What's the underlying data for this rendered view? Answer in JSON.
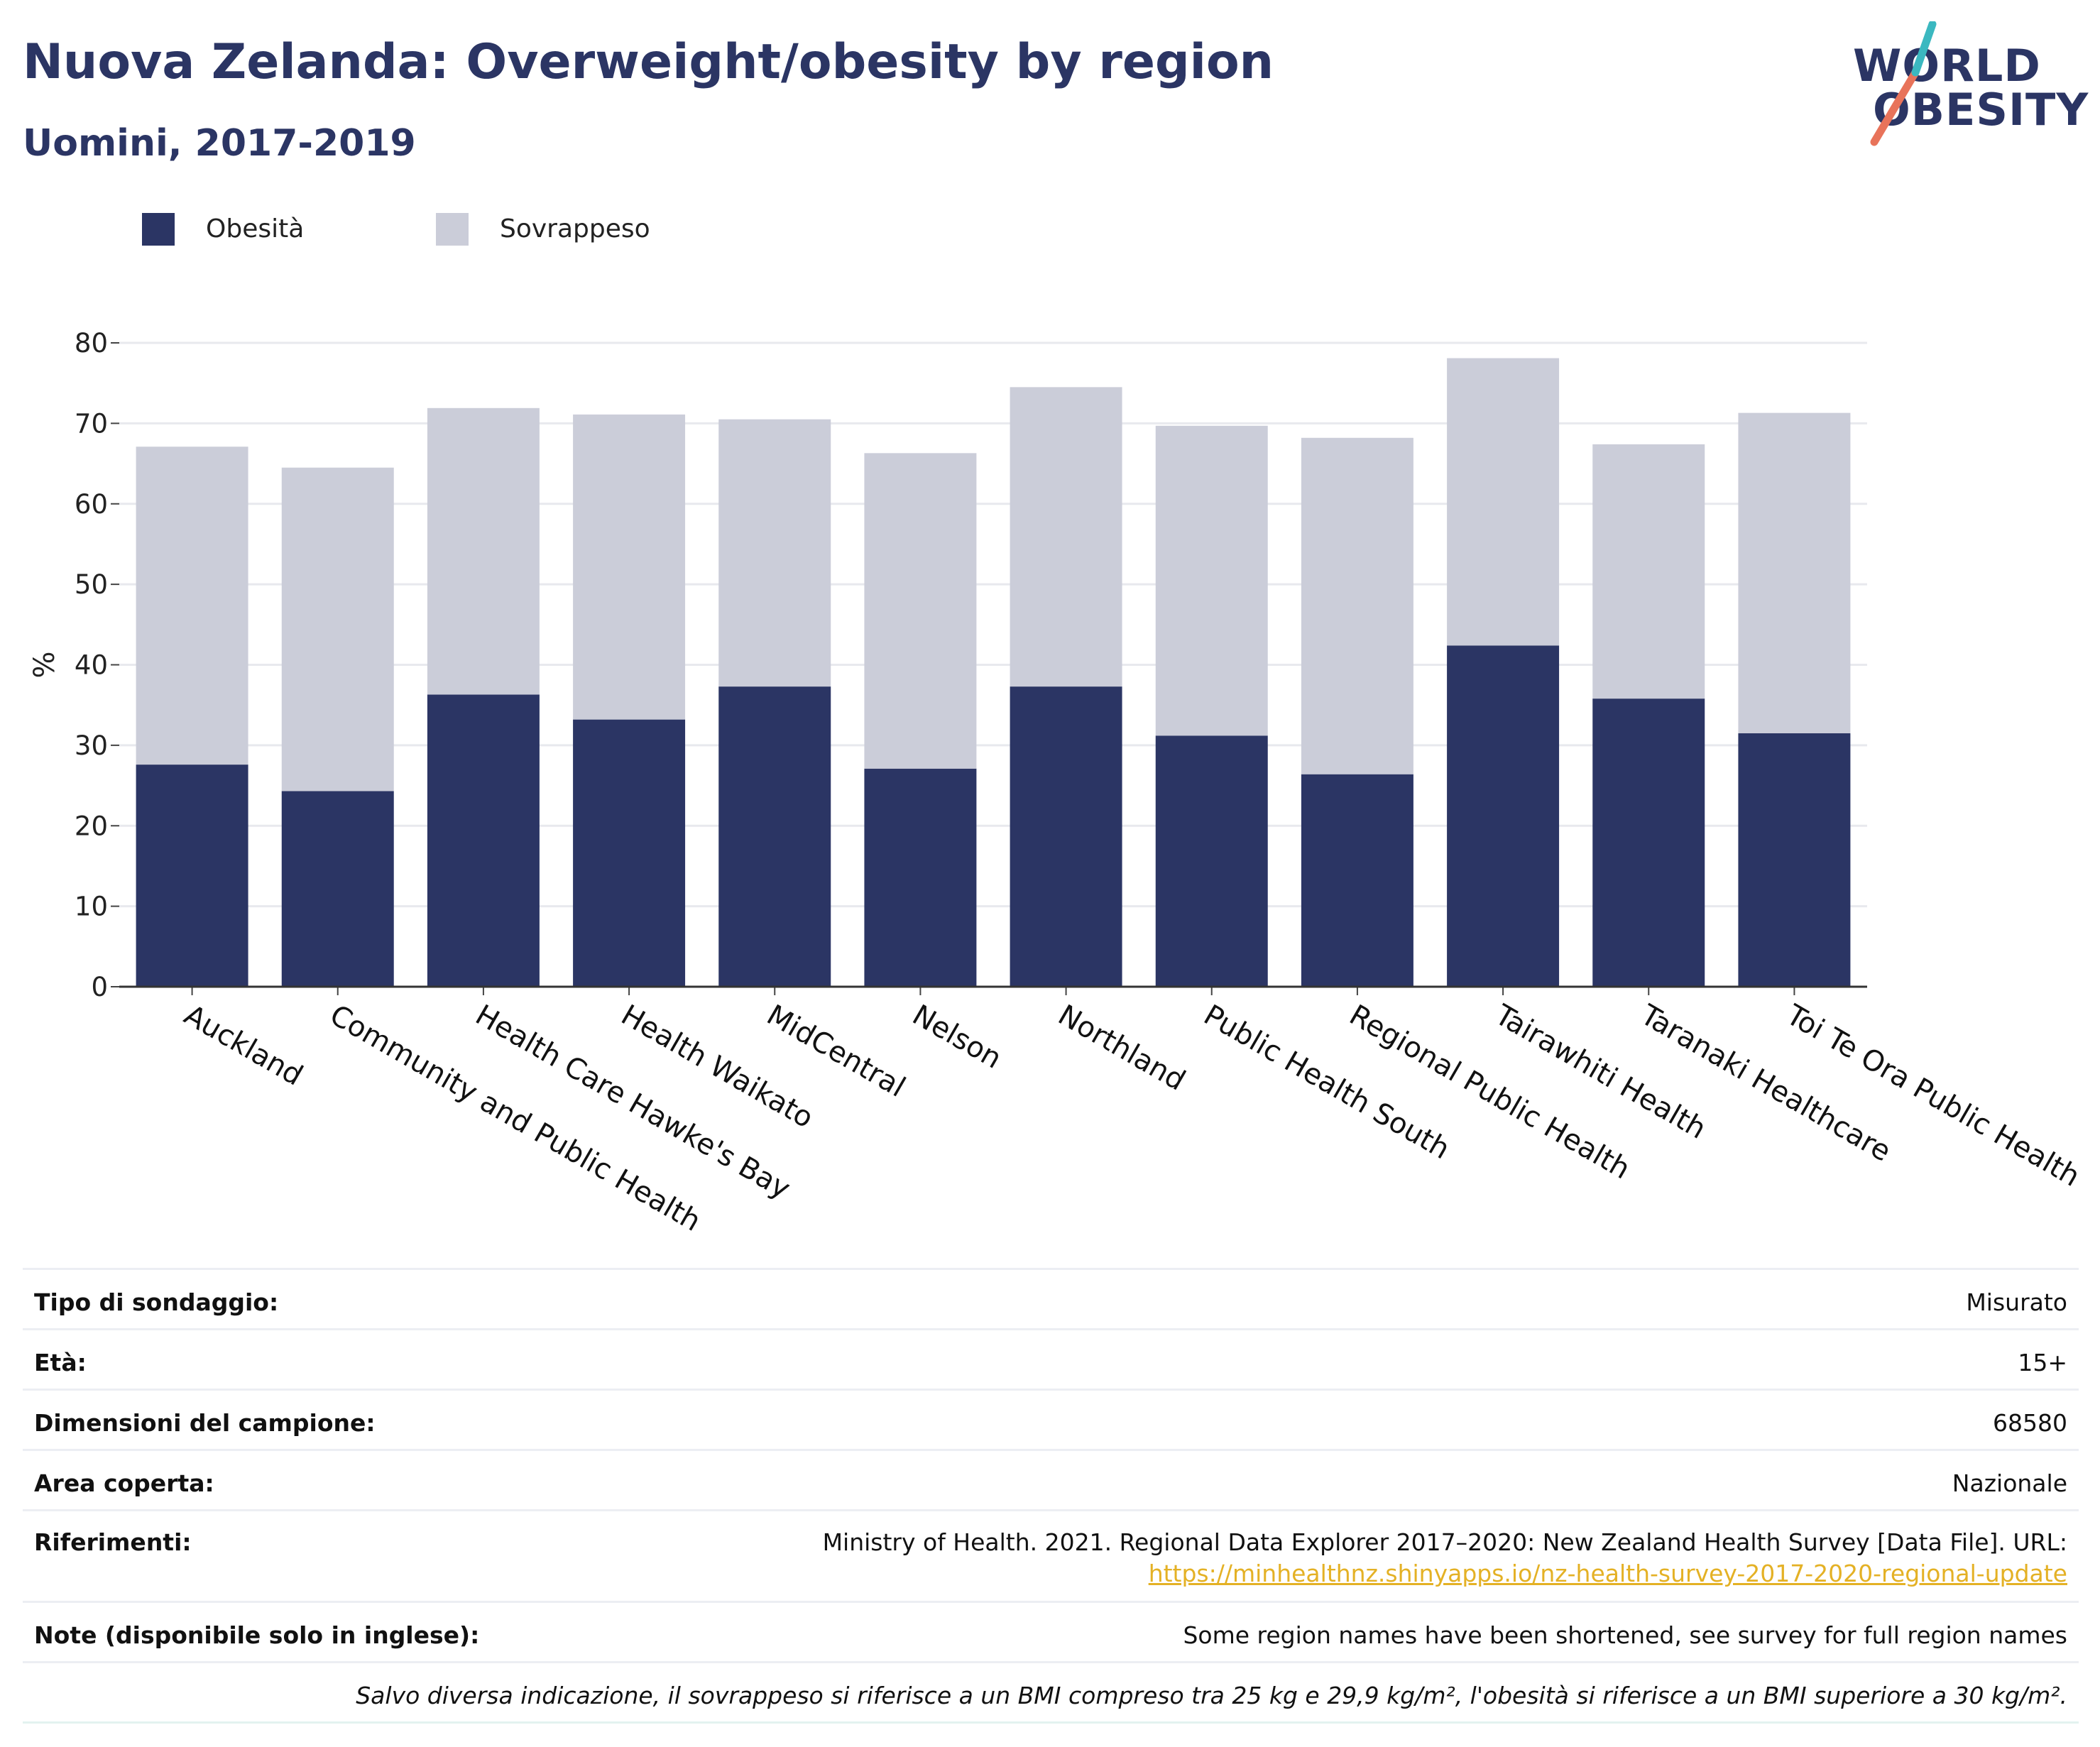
{
  "header": {
    "title": "Nuova Zelanda: Overweight/obesity by region",
    "subtitle": "Uomini, 2017-2019"
  },
  "logo": {
    "line1": "WORLD",
    "line2": "OBESITY",
    "accent_colors": [
      "#e8735a",
      "#3bb8c0"
    ]
  },
  "legend": {
    "items": [
      {
        "label": "Obesità",
        "color": "#2b3564"
      },
      {
        "label": "Sovrappeso",
        "color": "#cbcdd9"
      }
    ]
  },
  "chart_data": {
    "type": "bar",
    "stacked": true,
    "categories": [
      "Auckland",
      "Community and Public Health",
      "Health Care Hawke's Bay",
      "Health Waikato",
      "MidCentral",
      "Nelson",
      "Northland",
      "Public Health South",
      "Regional Public Health",
      "Tairawhiti Health",
      "Taranaki Healthcare",
      "Toi Te Ora Public Health"
    ],
    "series": [
      {
        "name": "Obesità",
        "color": "#2b3564",
        "values": [
          27.6,
          24.3,
          36.3,
          33.2,
          37.3,
          27.1,
          37.3,
          31.2,
          26.4,
          42.4,
          35.8,
          31.5
        ]
      },
      {
        "name": "Sovrappeso",
        "color": "#cbcdd9",
        "values": [
          39.5,
          40.2,
          35.6,
          37.9,
          33.2,
          39.2,
          37.2,
          38.5,
          41.8,
          35.7,
          31.6,
          39.8
        ]
      }
    ],
    "ylabel": "%",
    "ylim": [
      0,
      80
    ],
    "yticks": [
      0,
      10,
      20,
      30,
      40,
      50,
      60,
      70,
      80
    ],
    "grid": true
  },
  "info": {
    "rows": [
      {
        "key": "Tipo di sondaggio:",
        "value": "Misurato"
      },
      {
        "key": "Età:",
        "value": "15+"
      },
      {
        "key": "Dimensioni del campione:",
        "value": "68580"
      },
      {
        "key": "Area coperta:",
        "value": "Nazionale"
      }
    ],
    "references_key": "Riferimenti:",
    "references_text": "Ministry of Health. 2021. Regional Data Explorer 2017–2020: New Zealand Health Survey [Data File]. URL:",
    "references_link": "https://minhealthnz.shinyapps.io/nz-health-survey-2017-2020-regional-update",
    "notes_key": "Note (disponibile solo in inglese):",
    "notes_value": "Some region names have been shortened, see survey for full region names",
    "footnote": "Salvo diversa indicazione, il sovrappeso si riferisce a un BMI compreso tra 25 kg e 29,9 kg/m², l'obesità si riferisce a un BMI superiore a 30 kg/m²."
  }
}
